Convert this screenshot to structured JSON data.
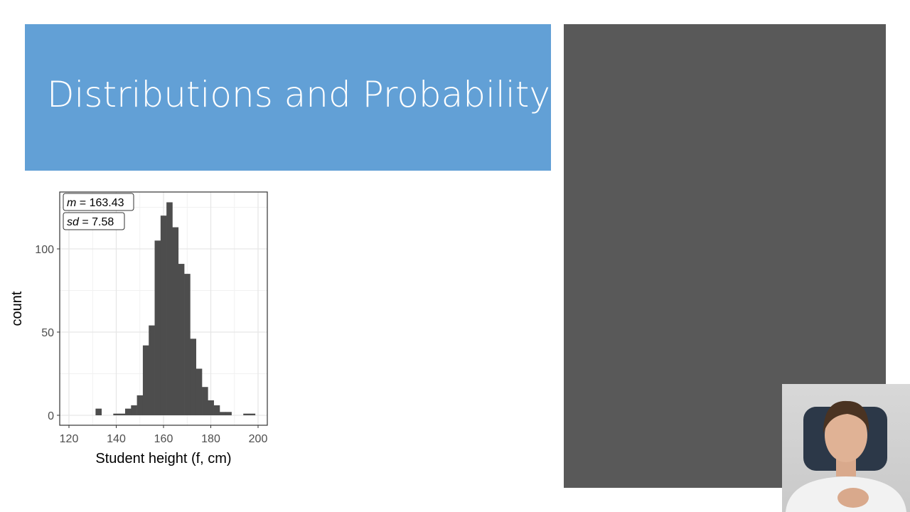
{
  "slide": {
    "title": "Distributions and Probability",
    "header_color": "#62a0d6",
    "panel_color": "#595959"
  },
  "chart_data": {
    "type": "bar",
    "subtype": "histogram",
    "xlabel": "Student height (f, cm)",
    "ylabel": "count",
    "xlim": [
      117,
      201
    ],
    "ylim": [
      0,
      130
    ],
    "x_ticks": [
      120,
      140,
      160,
      180,
      200
    ],
    "y_ticks": [
      0,
      50,
      100
    ],
    "grid": true,
    "bin_width": 2.5,
    "bin_centers": [
      132.5,
      135,
      137.5,
      140,
      142.5,
      145,
      147.5,
      150,
      152.5,
      155,
      157.5,
      160,
      162.5,
      165,
      167.5,
      170,
      172.5,
      175,
      177.5,
      180,
      182.5,
      185,
      187.5,
      190,
      192.5,
      195,
      197.5
    ],
    "values": [
      4,
      0,
      0,
      1,
      1,
      4,
      6,
      12,
      42,
      54,
      105,
      120,
      128,
      113,
      91,
      85,
      46,
      28,
      17,
      9,
      6,
      2,
      2,
      0,
      0,
      1,
      1
    ],
    "bar_color": "#4d4d4d",
    "annotations": [
      {
        "italic": "m",
        "text": " = 163.43"
      },
      {
        "italic": "sd",
        "text": " = 7.58"
      }
    ]
  },
  "webcam": {
    "label": "presenter video"
  }
}
